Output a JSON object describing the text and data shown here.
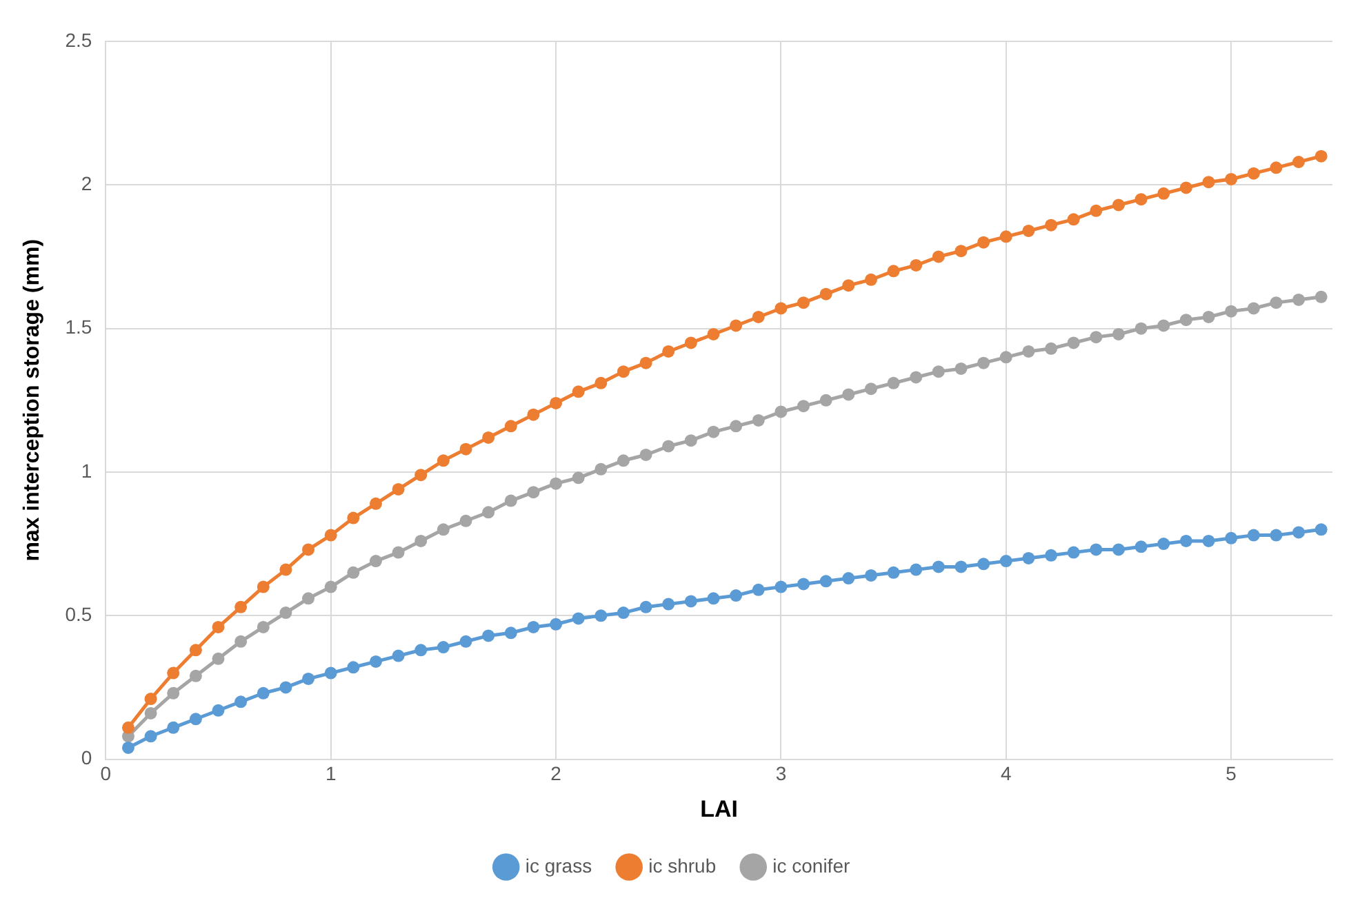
{
  "chart_data": {
    "type": "line",
    "xlabel": "LAI",
    "ylabel": "max interception storage (mm)",
    "x": [
      0.1,
      0.2,
      0.3,
      0.4,
      0.5,
      0.6,
      0.7,
      0.8,
      0.9,
      1.0,
      1.1,
      1.2,
      1.3,
      1.4,
      1.5,
      1.6,
      1.7,
      1.8,
      1.9,
      2.0,
      2.1,
      2.2,
      2.3,
      2.4,
      2.5,
      2.6,
      2.7,
      2.8,
      2.9,
      3.0,
      3.1,
      3.2,
      3.3,
      3.4,
      3.5,
      3.6,
      3.7,
      3.8,
      3.9,
      4.0,
      4.1,
      4.2,
      4.3,
      4.4,
      4.5,
      4.6,
      4.7,
      4.8,
      4.9,
      5.0,
      5.1,
      5.2,
      5.3,
      5.4
    ],
    "series": [
      {
        "name": "ic grass",
        "color": "#5b9bd5",
        "values": [
          0.04,
          0.08,
          0.11,
          0.14,
          0.17,
          0.2,
          0.23,
          0.25,
          0.28,
          0.3,
          0.32,
          0.34,
          0.36,
          0.38,
          0.39,
          0.41,
          0.43,
          0.44,
          0.46,
          0.47,
          0.49,
          0.5,
          0.51,
          0.53,
          0.54,
          0.55,
          0.56,
          0.57,
          0.59,
          0.6,
          0.61,
          0.62,
          0.63,
          0.64,
          0.65,
          0.66,
          0.67,
          0.67,
          0.68,
          0.69,
          0.7,
          0.71,
          0.72,
          0.73,
          0.73,
          0.74,
          0.75,
          0.76,
          0.76,
          0.77,
          0.78,
          0.78,
          0.79,
          0.8
        ]
      },
      {
        "name": "ic shrub",
        "color": "#ed7d31",
        "values": [
          0.11,
          0.21,
          0.3,
          0.38,
          0.46,
          0.53,
          0.6,
          0.66,
          0.73,
          0.78,
          0.84,
          0.89,
          0.94,
          0.99,
          1.04,
          1.08,
          1.12,
          1.16,
          1.2,
          1.24,
          1.28,
          1.31,
          1.35,
          1.38,
          1.42,
          1.45,
          1.48,
          1.51,
          1.54,
          1.57,
          1.59,
          1.62,
          1.65,
          1.67,
          1.7,
          1.72,
          1.75,
          1.77,
          1.8,
          1.82,
          1.84,
          1.86,
          1.88,
          1.91,
          1.93,
          1.95,
          1.97,
          1.99,
          2.01,
          2.02,
          2.04,
          2.06,
          2.08,
          2.1
        ]
      },
      {
        "name": "ic conifer",
        "color": "#a5a5a5",
        "values": [
          0.08,
          0.16,
          0.23,
          0.29,
          0.35,
          0.41,
          0.46,
          0.51,
          0.56,
          0.6,
          0.65,
          0.69,
          0.72,
          0.76,
          0.8,
          0.83,
          0.86,
          0.9,
          0.93,
          0.96,
          0.98,
          1.01,
          1.04,
          1.06,
          1.09,
          1.11,
          1.14,
          1.16,
          1.18,
          1.21,
          1.23,
          1.25,
          1.27,
          1.29,
          1.31,
          1.33,
          1.35,
          1.36,
          1.38,
          1.4,
          1.42,
          1.43,
          1.45,
          1.47,
          1.48,
          1.5,
          1.51,
          1.53,
          1.54,
          1.56,
          1.57,
          1.59,
          1.6,
          1.61
        ]
      }
    ],
    "xlim": [
      0,
      5.45
    ],
    "xticks": [
      0,
      1,
      2,
      3,
      4,
      5
    ],
    "ylim": [
      0,
      2.5
    ],
    "yticks": [
      0,
      0.5,
      1,
      1.5,
      2,
      2.5
    ],
    "grid": true,
    "legend": "bottom",
    "marker": "circle",
    "line_style": "solid"
  }
}
